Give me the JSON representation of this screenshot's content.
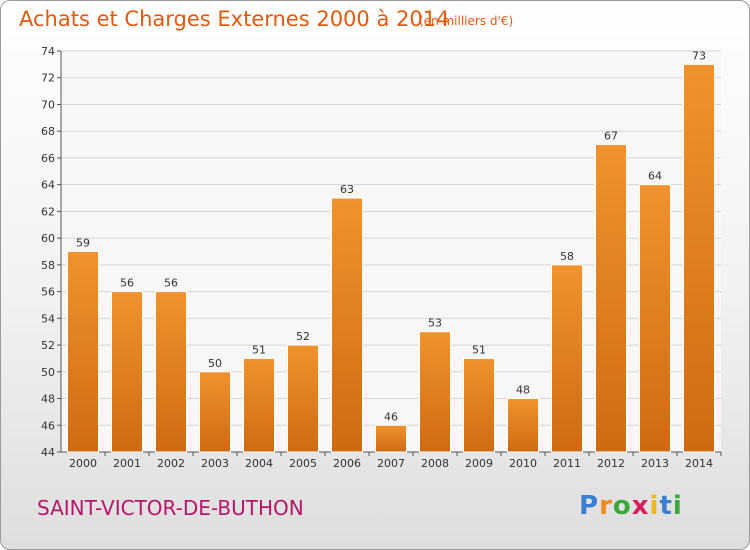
{
  "page": {
    "title": "Achats et Charges Externes 2000 à 2014",
    "subtitle": "(en milliers d'€)",
    "commune": "SAINT-VICTOR-DE-BUTHON",
    "logo": {
      "letters": [
        "P",
        "r",
        "o",
        "x",
        "i",
        "t",
        "i"
      ],
      "colors": [
        "#3a7fd0",
        "#f08a1c",
        "#3aa83a",
        "#d81e5b",
        "#f0b81c",
        "#3a7fd0",
        "#3aa83a"
      ]
    }
  },
  "chart_data": {
    "type": "bar",
    "categories": [
      "2000",
      "2001",
      "2002",
      "2003",
      "2004",
      "2005",
      "2006",
      "2007",
      "2008",
      "2009",
      "2010",
      "2011",
      "2012",
      "2013",
      "2014"
    ],
    "values": [
      59,
      56,
      56,
      50,
      51,
      52,
      63,
      46,
      53,
      51,
      48,
      58,
      67,
      64,
      73
    ],
    "ylim": [
      44,
      74
    ],
    "yticks": [
      44,
      46,
      48,
      50,
      52,
      54,
      56,
      58,
      60,
      62,
      64,
      66,
      68,
      70,
      72,
      74
    ],
    "grid": true,
    "bar_color": "#f0922e",
    "bar_color_dark": "#cf6a12",
    "title": "Achats et Charges Externes 2000 à 2014",
    "xlabel": "",
    "ylabel": ""
  }
}
